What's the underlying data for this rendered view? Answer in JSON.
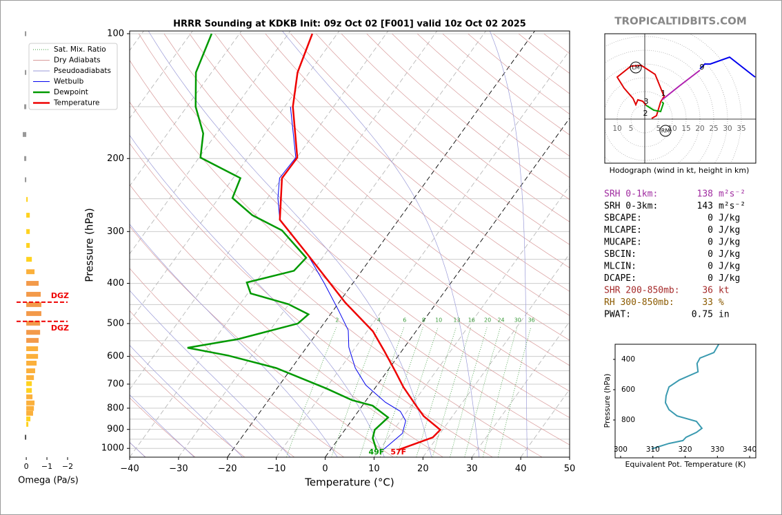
{
  "site": "TROPICALTIDBITS.COM",
  "indices": {
    "rows": [
      {
        "label": "SRH 0-1km:",
        "value": 138,
        "unit": "m²s⁻²",
        "color": "#a02ca0"
      },
      {
        "label": "SRH 0-3km:",
        "value": 143,
        "unit": "m²s⁻²",
        "color": "#000000"
      },
      {
        "label": "SBCAPE:",
        "value": 0,
        "unit": "J/kg",
        "color": "#000000"
      },
      {
        "label": "MLCAPE:",
        "value": 0,
        "unit": "J/kg",
        "color": "#000000"
      },
      {
        "label": "MUCAPE:",
        "value": 0,
        "unit": "J/kg",
        "color": "#000000"
      },
      {
        "label": "SBCIN:",
        "value": 0,
        "unit": "J/kg",
        "color": "#000000"
      },
      {
        "label": "MLCIN:",
        "value": 0,
        "unit": "J/kg",
        "color": "#000000"
      },
      {
        "label": "DCAPE:",
        "value": 0,
        "unit": "J/kg",
        "color": "#000000"
      },
      {
        "label": "SHR 200-850mb:",
        "value": 36,
        "unit": "kt",
        "color": "#a52a2a"
      },
      {
        "label": "RH 300-850mb:",
        "value": 33,
        "unit": "%",
        "color": "#8b5a00"
      },
      {
        "label": "PWAT:",
        "value": 0.75,
        "unit": "in",
        "color": "#000000"
      }
    ]
  },
  "chart_data": [
    {
      "type": "skewt",
      "title": "HRRR Sounding at KDKB Init: 09z Oct 02 [F001] valid 10z Oct 02 2025",
      "xlabel": "Temperature (°C)",
      "ylabel": "Pressure (hPa)",
      "xlim": [
        -40,
        50
      ],
      "xticks": [
        {
          "value": -40,
          "label": "−40"
        },
        {
          "value": -30,
          "label": "−30"
        },
        {
          "value": -20,
          "label": "−20"
        },
        {
          "value": -10,
          "label": "−10"
        },
        0,
        10,
        20,
        30,
        40,
        50
      ],
      "ylim": [
        1050,
        98.5
      ],
      "log_y": true,
      "yticks": [
        100,
        200,
        300,
        400,
        500,
        600,
        700,
        800,
        900,
        1000
      ],
      "grid_pressures": [
        100,
        150,
        200,
        250,
        300,
        350,
        400,
        450,
        500,
        550,
        600,
        650,
        700,
        750,
        800,
        850,
        900,
        950,
        1000
      ],
      "grid_color": "#cccccc",
      "isotherm_color": "#b0b0b0",
      "highlight_isotherms": [
        -20,
        0
      ],
      "mixing_ratios": [
        2,
        4,
        6,
        8,
        10,
        13,
        16,
        20,
        24,
        30,
        36
      ],
      "reference_lines": [
        {
          "name": "Sat. Mix. Ratio",
          "color": "#3a9a3a",
          "style": "dotted"
        },
        {
          "name": "Dry Adiabats",
          "color": "#d89a9a",
          "style": "solid"
        },
        {
          "name": "Pseudoadiabats",
          "color": "#9a9ad8",
          "style": "solid"
        }
      ],
      "legend": "upper left",
      "series": [
        {
          "name": "Wetbulb",
          "color": "#0000ee",
          "linewidth": 1,
          "pressure": [
            1006,
            920,
            858,
            814,
            774,
            704,
            640,
            570,
            519,
            463,
            400,
            340,
            281,
            249,
            223,
            199,
            150
          ],
          "values": [
            10.8,
            12.3,
            11.1,
            8.6,
            4.2,
            -2.3,
            -7.0,
            -11.4,
            -14.0,
            -19.1,
            -25.8,
            -33.6,
            -44.3,
            -47.9,
            -50.5,
            -50.2,
            -58.8
          ]
        },
        {
          "name": "Dewpoint",
          "color": "#009900",
          "linewidth": 2.5,
          "surface_label": "49F",
          "pressure": [
            1008,
            944,
            902,
            842,
            789,
            765,
            717,
            640,
            597,
            572,
            545,
            500,
            475,
            449,
            423,
            398,
            373,
            347,
            298,
            274,
            249,
            223,
            199,
            174,
            150,
            124,
            100
          ],
          "values": [
            9.4,
            6.9,
            6.1,
            7.0,
            2.1,
            -2.9,
            -9.9,
            -23.2,
            -34.9,
            -44.3,
            -35.2,
            -25.3,
            -24.5,
            -30.1,
            -39.4,
            -41.8,
            -33.9,
            -33.3,
            -42.3,
            -50.6,
            -57.2,
            -58.5,
            -69.7,
            -72.7,
            -78.2,
            -83.2,
            -85.7
          ]
        },
        {
          "name": "Temperature",
          "color": "#ee0000",
          "linewidth": 2.5,
          "surface_label": "57F",
          "pressure": [
            1008,
            941,
            902,
            836,
            789,
            712,
            652,
            582,
            522,
            445,
            340,
            281,
            223,
            199,
            150,
            124,
            100
          ],
          "values": [
            13.9,
            19.1,
            19.5,
            14.1,
            11.0,
            5.7,
            1.7,
            -3.6,
            -8.8,
            -18.7,
            -33.6,
            -44.3,
            -50.0,
            -49.9,
            -58.3,
            -62.4,
            -65.1
          ]
        }
      ]
    },
    {
      "type": "bar",
      "xlabel": "Omega (Pa/s)",
      "xlim": [
        0.47,
        -2.2
      ],
      "xticks": [
        0,
        {
          "value": -1,
          "label": "−1"
        },
        {
          "value": -2,
          "label": "−2"
        }
      ],
      "ylim": [
        1050,
        98.5
      ],
      "log_y": true,
      "pressure": [
        100,
        124,
        150,
        175,
        200,
        225,
        251,
        274,
        300,
        324,
        350,
        375,
        400,
        425,
        450,
        473,
        499,
        525,
        549,
        575,
        600,
        623,
        650,
        675,
        698,
        725,
        751,
        777,
        801,
        823,
        849,
        875,
        940
      ],
      "values": [
        0.07,
        0.07,
        0.1,
        0.17,
        0.1,
        0.07,
        -0.07,
        -0.17,
        -0.17,
        -0.17,
        -0.27,
        -0.4,
        -0.6,
        -0.7,
        -0.73,
        -0.73,
        -0.67,
        -0.67,
        -0.6,
        -0.57,
        -0.57,
        -0.5,
        -0.43,
        -0.37,
        -0.27,
        -0.27,
        -0.3,
        -0.4,
        -0.37,
        -0.33,
        -0.2,
        -0.1,
        0.07
      ],
      "colors": [
        "#999999",
        "#999999",
        "#999999",
        "#999999",
        "#999999",
        "#999999",
        "#ffd21f",
        "#ffd21f",
        "#ffd21f",
        "#ffd21f",
        "#ffd21f",
        "#fbb03b",
        "#f39a4a",
        "#f39a4a",
        "#f39a4a",
        "#f39a4a",
        "#f39a4a",
        "#f39a4a",
        "#f39a4a",
        "#fbb03b",
        "#fbb03b",
        "#fbb03b",
        "#fbb03b",
        "#fbb03b",
        "#ffd21f",
        "#ffd21f",
        "#fbb03b",
        "#fbb03b",
        "#fbb03b",
        "#fbb03b",
        "#ffd21f",
        "#ffd21f",
        "#555555"
      ],
      "dgz": {
        "labels": [
          "DGZ",
          "DGZ"
        ],
        "pressures": [
          444,
          494
        ],
        "color": "#ee0000"
      }
    },
    {
      "type": "hodograph",
      "caption": "Hodograph (wind in kt, height in km)",
      "xlim": [
        -14.5,
        40.25
      ],
      "ylim": [
        -16,
        31
      ],
      "left_labels": [
        10,
        5
      ],
      "right_labels": [
        5,
        10,
        15,
        20,
        25,
        30,
        35
      ],
      "series": [
        {
          "color": "#e00000",
          "u": [
            2.5,
            4.25,
            5.75,
            7,
            3.75,
            -1.25,
            -5,
            -10,
            -7.5,
            -4.25,
            -3.25,
            -2.5,
            -0.75,
            0.5
          ],
          "v": [
            0.25,
            1.25,
            6.25,
            8.25,
            16.25,
            19.5,
            19.25,
            15.25,
            11.25,
            7.5,
            5.25,
            7,
            6.5,
            5
          ]
        },
        {
          "color": "#00a000",
          "u": [
            0.5,
            3.25,
            5.75,
            6.75,
            6.25
          ],
          "v": [
            5,
            3.25,
            2.75,
            5.75,
            6.25
          ]
        },
        {
          "color": "#b020b0",
          "u": [
            6.25,
            12.5,
            20
          ],
          "v": [
            7,
            12,
            17.75
          ]
        },
        {
          "color": "#0000ee",
          "u": [
            20,
            21.75,
            23.75,
            30.75,
            40
          ],
          "v": [
            18.25,
            20,
            20,
            22.5,
            15.25
          ]
        }
      ],
      "markers": [
        {
          "label": "LM",
          "u": -3.25,
          "v": 18.75,
          "circle": true
        },
        {
          "label": "RM",
          "u": 7.5,
          "v": -4.25,
          "circle": true
        },
        {
          "label": "1",
          "u": 6.75,
          "v": 9.25,
          "circle": false
        },
        {
          "label": "2",
          "u": 0.25,
          "v": 2,
          "circle": false
        },
        {
          "label": "3",
          "u": 0.5,
          "v": 6.25,
          "circle": false
        },
        {
          "label": "9",
          "u": 20.75,
          "v": 18.75,
          "circle": false
        }
      ]
    },
    {
      "type": "line",
      "xlabel": "Equivalent Pot. Temperature (K)",
      "ylabel": "Pressure (hPa)",
      "xlim": [
        298.3,
        341.9
      ],
      "xticks": [
        300,
        310,
        320,
        330,
        340
      ],
      "ylim": [
        1050,
        300
      ],
      "yticks": [
        400,
        600,
        800
      ],
      "series": [
        {
          "color": "#3a9ab0",
          "pressure": [
            300,
            355,
            391,
            427,
            482,
            536,
            582,
            641,
            686,
            732,
            773,
            809,
            855,
            882,
            914,
            936,
            955,
            991
          ],
          "values": [
            330.4,
            328.9,
            324.6,
            323.7,
            324.0,
            318.2,
            315.0,
            314.1,
            313.9,
            315.0,
            317.5,
            323.5,
            325.2,
            323.5,
            320.3,
            319.3,
            315.0,
            309.6
          ]
        }
      ]
    }
  ]
}
